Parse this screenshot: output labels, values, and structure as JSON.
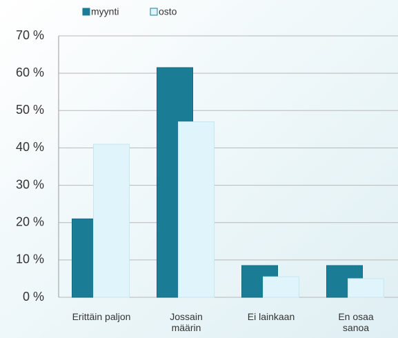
{
  "chart_data": {
    "type": "bar",
    "categories": [
      "Erittäin paljon",
      "Jossain\nmäärin",
      "Ei  lainkaan",
      "En osaa\nsanoa"
    ],
    "series": [
      {
        "name": "myynti",
        "color": "#1b7c96",
        "values": [
          21,
          61.5,
          8.5,
          8.5
        ]
      },
      {
        "name": "osto",
        "color": "#dff4fb",
        "values": [
          41,
          47,
          5.5,
          5
        ]
      }
    ],
    "ylim": [
      0,
      70
    ],
    "yticks": [
      {
        "value": 0,
        "label": "0 %"
      },
      {
        "value": 10,
        "label": "10 %"
      },
      {
        "value": 20,
        "label": "20 %"
      },
      {
        "value": 30,
        "label": "30 %"
      },
      {
        "value": 40,
        "label": "40 %"
      },
      {
        "value": 50,
        "label": "50 %"
      },
      {
        "value": 60,
        "label": "60 %"
      },
      {
        "value": 70,
        "label": "70 %"
      }
    ],
    "grid": true,
    "legend": "top"
  }
}
